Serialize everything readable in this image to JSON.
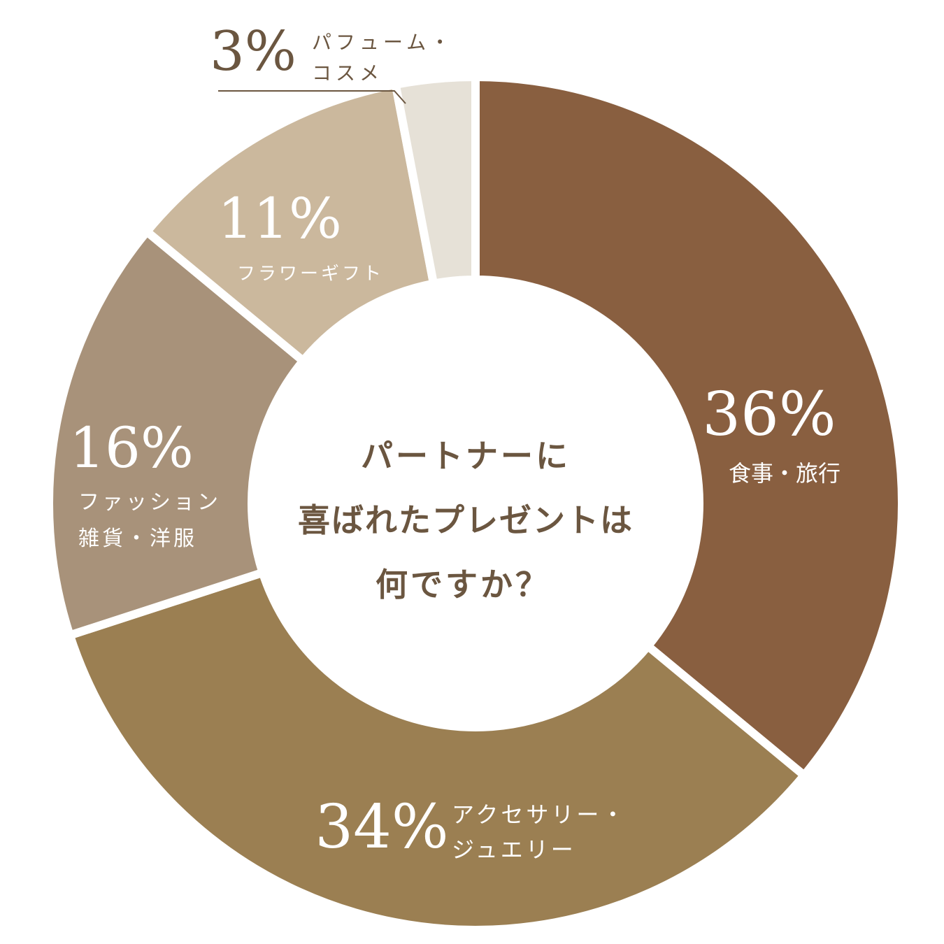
{
  "chart_data": {
    "type": "pie",
    "variant": "donut",
    "title_lines": [
      "パートナーに",
      "喜ばれたプレゼントは",
      "何ですか？"
    ],
    "slices": [
      {
        "percent_label": "36%",
        "value": 36,
        "label_lines": [
          "食事・旅行"
        ],
        "color": "#895f40"
      },
      {
        "percent_label": "34%",
        "value": 34,
        "label_lines": [
          "アクセサリー・",
          "ジュエリー"
        ],
        "color": "#9b7f52"
      },
      {
        "percent_label": "16%",
        "value": 16,
        "label_lines": [
          "ファッション",
          "雑貨・洋服"
        ],
        "color": "#a8927a"
      },
      {
        "percent_label": "11%",
        "value": 11,
        "label_lines": [
          "フラワーギフト"
        ],
        "color": "#cbb89d"
      },
      {
        "percent_label": "3%",
        "value": 3,
        "label_lines": [
          "パフューム・",
          "コスメ"
        ],
        "color": "#e6e1d7"
      }
    ],
    "colors": {
      "dark_label_text": "#6b5640",
      "light_label_text": "#ffffff",
      "leader_line": "#6b5640",
      "center_text": "#6b5640"
    }
  }
}
